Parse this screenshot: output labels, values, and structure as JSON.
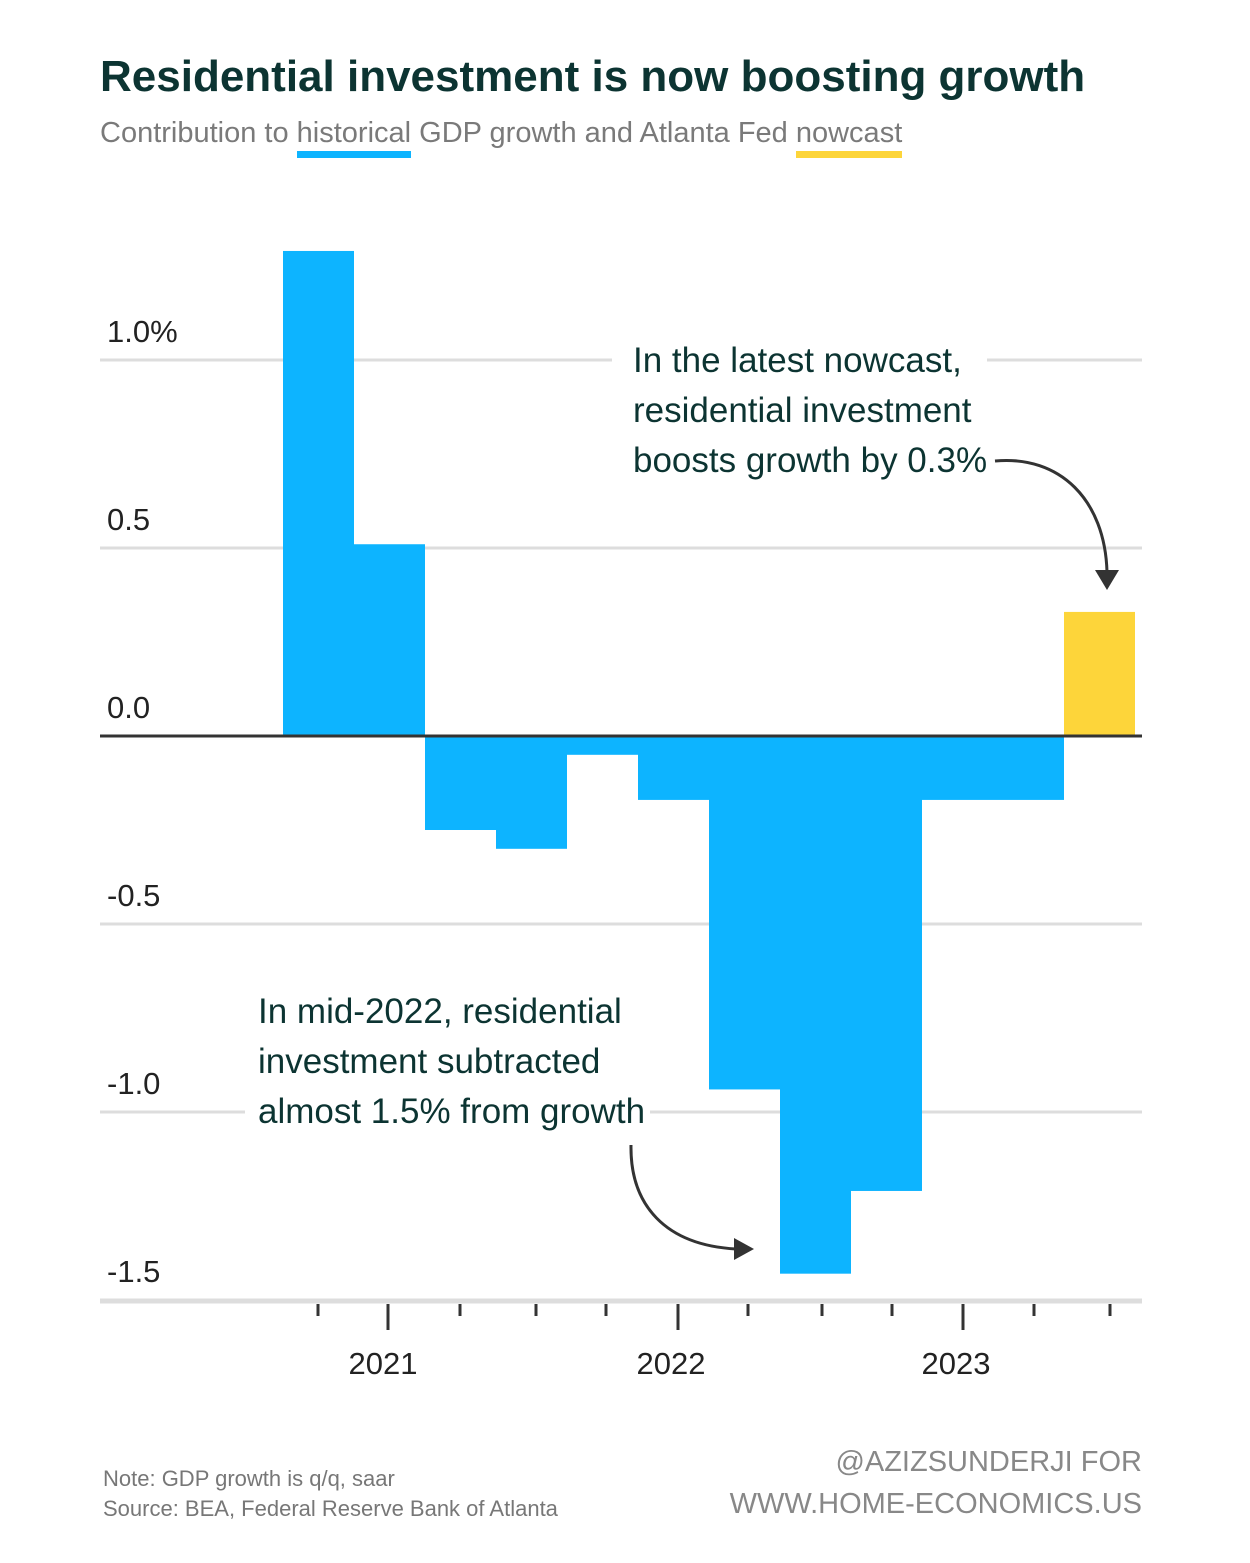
{
  "title": "Residential investment is now boosting growth",
  "subtitle": {
    "prefix": "Contribution to ",
    "historical": "historical",
    "middle": " GDP growth and Atlanta Fed ",
    "nowcast": "nowcast"
  },
  "colors": {
    "historical": "#0db4ff",
    "nowcast": "#fdd53a",
    "title": "#0c3432",
    "grid": "#dddddd",
    "axis": "#333333"
  },
  "chart_data": {
    "type": "bar",
    "y_ticks": [
      1.0,
      0.5,
      0.0,
      -0.5,
      -1.0,
      -1.5
    ],
    "y_tick_labels": [
      "1.0%",
      "0.5",
      "0.0",
      "-0.5",
      "-1.0",
      "-1.5"
    ],
    "ylim": [
      -1.55,
      1.3
    ],
    "x_year_labels": [
      "2021",
      "2022",
      "2023"
    ],
    "grid": true,
    "series": [
      {
        "name": "historical",
        "quarters": [
          "2020 Q4",
          "2021 Q1",
          "2021 Q2",
          "2021 Q3",
          "2021 Q4",
          "2022 Q1",
          "2022 Q2",
          "2022 Q3",
          "2022 Q4",
          "2023 Q1",
          "2023 Q2"
        ],
        "values": [
          1.29,
          0.51,
          -0.25,
          -0.3,
          -0.05,
          -0.17,
          -0.94,
          -1.43,
          -1.21,
          -0.17,
          -0.17
        ]
      },
      {
        "name": "nowcast",
        "quarters": [
          "2023 Q3"
        ],
        "values": [
          0.33
        ]
      }
    ],
    "annotations": [
      {
        "lines": [
          "In the latest nowcast,",
          "residential investment",
          "boosts growth by 0.3%"
        ]
      },
      {
        "lines": [
          "In mid-2022, residential",
          "investment subtracted",
          "almost 1.5% from growth"
        ]
      }
    ]
  },
  "footer": {
    "note": "Note: GDP growth is q/q, saar",
    "source": "Source: BEA, Federal Reserve Bank of Atlanta",
    "credit_line1": "@AZIZSUNDERJI FOR",
    "credit_line2": "WWW.HOME-ECONOMICS.US"
  }
}
